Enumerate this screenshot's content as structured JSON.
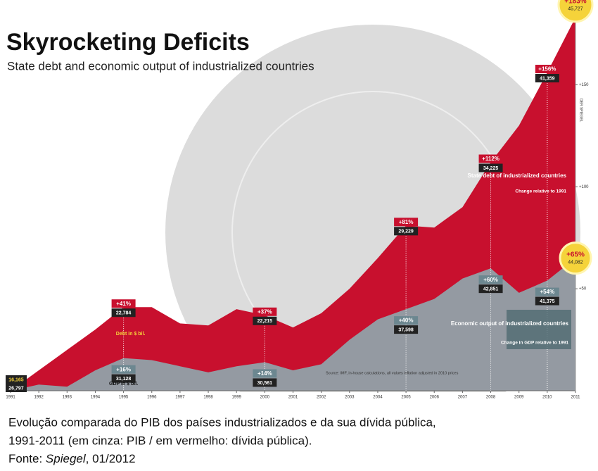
{
  "chart_data": {
    "type": "area",
    "title": "Skyrocketing Deficits",
    "subtitle": "State debt and economic output of industrialized countries",
    "x": [
      1991,
      1992,
      1993,
      1994,
      1995,
      1996,
      1997,
      1998,
      1999,
      2000,
      2001,
      2002,
      2003,
      2004,
      2005,
      2006,
      2007,
      2008,
      2009,
      2010,
      2011
    ],
    "xlim": [
      1991,
      2011
    ],
    "xticks": [
      1991,
      1992,
      1993,
      1994,
      1995,
      1996,
      1997,
      1998,
      1999,
      2000,
      2001,
      2002,
      2003,
      2004,
      2005,
      2006,
      2007,
      2008,
      2009,
      2010,
      2011
    ],
    "ylim": [
      0,
      185
    ],
    "yticks": [
      {
        "value": 50,
        "label": "+50"
      },
      {
        "value": 100,
        "label": "+100"
      },
      {
        "value": 150,
        "label": "+150"
      }
    ],
    "series": [
      {
        "name": "State debt of industrialized countries",
        "color": "#c8102e",
        "values": [
          0,
          10,
          20,
          30,
          41,
          41,
          33,
          32,
          40,
          37,
          31,
          38,
          50,
          65,
          81,
          80,
          90,
          112,
          130,
          156,
          183
        ],
        "value_labels": [
          null,
          null,
          null,
          null,
          "+41%",
          null,
          null,
          null,
          null,
          "+37%",
          null,
          null,
          null,
          null,
          "+81%",
          null,
          null,
          "+112%",
          null,
          "+156%",
          "+183%"
        ],
        "amount_labels": [
          "16,165",
          null,
          null,
          null,
          "22,784",
          null,
          null,
          null,
          null,
          "22,215",
          null,
          null,
          null,
          null,
          "29,229",
          null,
          null,
          "34,225",
          null,
          "41,359",
          "45,727"
        ]
      },
      {
        "name": "Economic output of industrialized countries",
        "color": "#8fa6ad",
        "values": [
          0,
          3,
          2,
          10,
          16,
          15,
          12,
          9,
          12,
          14,
          10,
          13,
          25,
          35,
          40,
          45,
          55,
          60,
          48,
          54,
          65
        ],
        "value_labels": [
          null,
          null,
          null,
          null,
          "+16%",
          null,
          null,
          null,
          null,
          "+14%",
          null,
          null,
          null,
          null,
          "+40%",
          null,
          null,
          "+60%",
          null,
          "+54%",
          "+65%"
        ],
        "amount_labels": [
          "26,797",
          null,
          null,
          null,
          "31,128",
          null,
          null,
          null,
          null,
          "30,561",
          null,
          null,
          null,
          null,
          "37,598",
          null,
          null,
          "42,851",
          null,
          "41,375",
          "44,082"
        ]
      }
    ],
    "annotations": {
      "debt_unit": "Debt in $ bil.",
      "gdp_unit": "GDP in $ bil.",
      "debt_note": "Change relative to 1991",
      "gdp_note": "Change in GDP relative to 1991",
      "source": "Source: IMF, in-house calculations, all values inflation adjusted in 2010 prices",
      "credit": "DER SPIEGEL"
    }
  },
  "caption": {
    "line1": "Evolução comparada do PIB dos países industrializados e da sua dívida pública,",
    "line2": "1991-2011 (em cinza: PIB / em vermelho: dívida pública).",
    "source_prefix": "Fonte: ",
    "source_name": "Spiegel",
    "source_suffix": ", 01/2012"
  }
}
